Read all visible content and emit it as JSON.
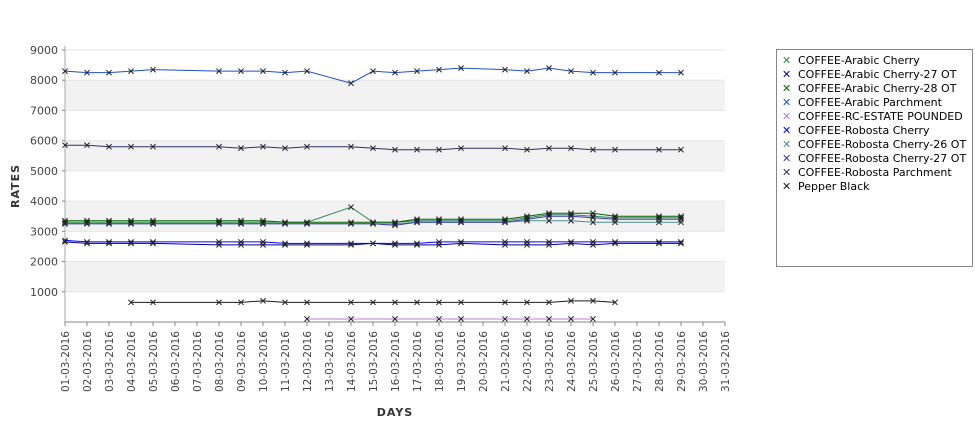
{
  "chart_data": {
    "type": "line",
    "title": "",
    "xlabel": "DAYS",
    "ylabel": "RATES",
    "ylim": [
      0,
      9000
    ],
    "yticks": [
      1000,
      2000,
      3000,
      4000,
      5000,
      6000,
      7000,
      8000,
      9000
    ],
    "grid": "horizontal alternating bands",
    "legend_position": "right",
    "categories": [
      "01-03-2016",
      "02-03-2016",
      "03-03-2016",
      "04-03-2016",
      "05-03-2016",
      "06-03-2016",
      "07-03-2016",
      "08-03-2016",
      "09-03-2016",
      "10-03-2016",
      "11-03-2016",
      "12-03-2016",
      "13-03-2016",
      "14-03-2016",
      "15-03-2016",
      "16-03-2016",
      "17-03-2016",
      "18-03-2016",
      "19-03-2016",
      "20-03-2016",
      "21-03-2016",
      "22-03-2016",
      "23-03-2016",
      "24-03-2016",
      "25-03-2016",
      "26-03-2016",
      "27-03-2016",
      "28-03-2016",
      "29-03-2016",
      "30-03-2016",
      "31-03-2016"
    ],
    "series": [
      {
        "name": "COFFEE-Arabic Cherry",
        "color": "#2e8b57",
        "values": [
          3300,
          3300,
          3300,
          3300,
          3300,
          null,
          null,
          3300,
          3300,
          3300,
          3300,
          3300,
          null,
          3800,
          3300,
          3300,
          3350,
          3350,
          3350,
          null,
          3350,
          3450,
          3550,
          3550,
          3500,
          3450,
          null,
          3450,
          3450,
          null,
          null
        ]
      },
      {
        "name": "COFFEE-Arabic Cherry-27 OT",
        "color": "#00008b",
        "values": [
          2650,
          2600,
          2600,
          2600,
          2600,
          null,
          null,
          2550,
          2550,
          2550,
          2550,
          2550,
          null,
          2550,
          2600,
          2550,
          2550,
          2550,
          2600,
          null,
          2550,
          2550,
          2550,
          2600,
          2550,
          2600,
          null,
          2600,
          2600,
          null,
          null
        ]
      },
      {
        "name": "COFFEE-Arabic Cherry-28 OT",
        "color": "#006400",
        "values": [
          3350,
          3350,
          3350,
          3350,
          3350,
          null,
          null,
          3350,
          3350,
          3350,
          3300,
          3300,
          null,
          3300,
          3300,
          3300,
          3400,
          3400,
          3400,
          null,
          3400,
          3500,
          3600,
          3600,
          3600,
          3500,
          null,
          3500,
          3500,
          null,
          null
        ]
      },
      {
        "name": "COFFEE-Arabic Parchment",
        "color": "#1e50c8",
        "values": [
          8300,
          8250,
          8250,
          8300,
          8350,
          null,
          null,
          8300,
          8300,
          8300,
          8250,
          8300,
          null,
          7900,
          8300,
          8250,
          8300,
          8350,
          8400,
          null,
          8350,
          8300,
          8400,
          8300,
          8250,
          8250,
          null,
          8250,
          8250,
          null,
          null
        ]
      },
      {
        "name": "COFFEE-RC-ESTATE POUNDED",
        "color": "#c07ad0",
        "values": [
          null,
          null,
          null,
          null,
          null,
          null,
          null,
          null,
          null,
          null,
          null,
          100,
          null,
          100,
          null,
          100,
          null,
          100,
          100,
          null,
          100,
          100,
          100,
          100,
          100,
          null,
          null,
          null,
          null,
          null,
          null
        ]
      },
      {
        "name": "COFFEE-Robosta Cherry",
        "color": "#0000ff",
        "values": [
          2700,
          2650,
          2650,
          2650,
          2650,
          null,
          null,
          2650,
          2650,
          2650,
          2600,
          2600,
          null,
          2600,
          2600,
          2600,
          2600,
          2650,
          2650,
          null,
          2650,
          2650,
          2650,
          2650,
          2650,
          2650,
          null,
          2650,
          2650,
          null,
          null
        ]
      },
      {
        "name": "COFFEE-Robosta Cherry-26 OT",
        "color": "#4a8f8f",
        "values": [
          3250,
          3250,
          3250,
          3250,
          3250,
          null,
          null,
          3250,
          3250,
          3250,
          3250,
          3250,
          null,
          3250,
          3250,
          3250,
          3300,
          3300,
          3300,
          null,
          3300,
          3350,
          3350,
          3350,
          3300,
          3300,
          null,
          3300,
          3300,
          null,
          null
        ]
      },
      {
        "name": "COFFEE-Robosta Cherry-27 OT",
        "color": "#3a3aa8",
        "values": [
          3250,
          3250,
          3250,
          3250,
          3250,
          null,
          null,
          3250,
          3250,
          3250,
          3250,
          3250,
          null,
          3250,
          3250,
          3200,
          3300,
          3300,
          3300,
          null,
          3300,
          3400,
          3500,
          3500,
          3450,
          3400,
          null,
          3400,
          3400,
          null,
          null
        ]
      },
      {
        "name": "COFFEE-Robosta Parchment",
        "color": "#303060",
        "values": [
          5850,
          5850,
          5800,
          5800,
          5800,
          null,
          null,
          5800,
          5750,
          5800,
          5750,
          5800,
          null,
          5800,
          5750,
          5700,
          5700,
          5700,
          5750,
          null,
          5750,
          5700,
          5750,
          5750,
          5700,
          5700,
          null,
          5700,
          5700,
          null,
          null
        ]
      },
      {
        "name": "Pepper Black",
        "color": "#1a1a1a",
        "values": [
          null,
          null,
          null,
          650,
          650,
          null,
          null,
          650,
          650,
          700,
          650,
          650,
          null,
          650,
          650,
          650,
          650,
          650,
          650,
          null,
          650,
          650,
          650,
          700,
          700,
          650,
          null,
          null,
          null,
          null,
          null
        ]
      }
    ]
  }
}
